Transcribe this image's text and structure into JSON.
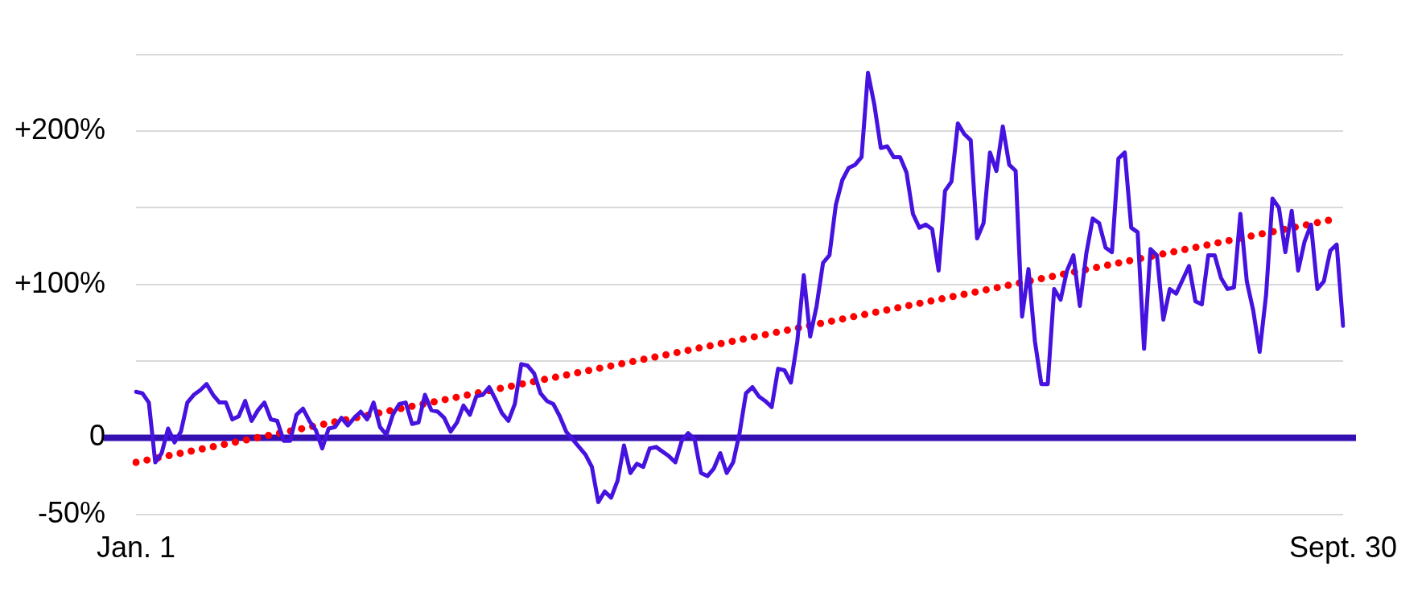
{
  "chart_data": {
    "type": "line",
    "categories": [
      "Jan. 1",
      null,
      null,
      null,
      null,
      null,
      null,
      null,
      null,
      null,
      null,
      null,
      null,
      null,
      null,
      null,
      null,
      null,
      null,
      null,
      null,
      null,
      null,
      null,
      null,
      null,
      null,
      null,
      null,
      null,
      null,
      null,
      null,
      null,
      null,
      null,
      null,
      null,
      null,
      null,
      null,
      null,
      null,
      null,
      null,
      null,
      null,
      null,
      null,
      null,
      null,
      null,
      null,
      null,
      null,
      null,
      null,
      null,
      null,
      null,
      null,
      null,
      null,
      null,
      null,
      null,
      null,
      null,
      null,
      null,
      null,
      null,
      null,
      null,
      null,
      null,
      null,
      null,
      null,
      null,
      null,
      null,
      null,
      null,
      null,
      null,
      null,
      null,
      null,
      null,
      null,
      null,
      null,
      null,
      null,
      null,
      null,
      null,
      null,
      null,
      null,
      null,
      null,
      null,
      null,
      null,
      null,
      null,
      null,
      null,
      null,
      null,
      null,
      null,
      null,
      null,
      null,
      null,
      null,
      null,
      null,
      null,
      null,
      null,
      null,
      null,
      null,
      null,
      null,
      null,
      null,
      null,
      null,
      null,
      null,
      null,
      null,
      null,
      null,
      null,
      null,
      null,
      null,
      null,
      null,
      null,
      null,
      null,
      null,
      null,
      null,
      null,
      null,
      null,
      null,
      null,
      null,
      null,
      null,
      null,
      null,
      null,
      null,
      null,
      null,
      null,
      null,
      null,
      null,
      null,
      null,
      null,
      null,
      null,
      null,
      null,
      null,
      null,
      null,
      null,
      null,
      null,
      null,
      null,
      null,
      null,
      null,
      null,
      "Sept. 30"
    ],
    "ylim": [
      -50,
      250
    ],
    "yticks": [
      {
        "value": -50,
        "label": "-50%"
      },
      {
        "value": 0,
        "label": "0"
      },
      {
        "value": 50,
        "label": null
      },
      {
        "value": 100,
        "label": "+100%"
      },
      {
        "value": 150,
        "label": null
      },
      {
        "value": 200,
        "label": "+200%"
      },
      {
        "value": 250,
        "label": null
      }
    ],
    "grid": "y",
    "marker": "none",
    "ref_lines": [
      {
        "axis": "y",
        "value": 0,
        "color": "#3510b0"
      }
    ],
    "series": [
      {
        "color": "#4512e0",
        "line_style": "solid",
        "values": [
          30,
          29,
          23,
          -16,
          -10,
          6,
          -3,
          4,
          23,
          28,
          31,
          35,
          28,
          23,
          23,
          12,
          14,
          24,
          11,
          18,
          23,
          12,
          11,
          -2,
          -2,
          15,
          19,
          11,
          5,
          -7,
          6,
          7,
          13,
          8,
          13,
          17,
          12,
          23,
          7,
          2,
          15,
          22,
          23,
          9,
          10,
          28,
          18,
          17,
          13,
          4,
          10,
          21,
          15,
          27,
          28,
          33,
          25,
          16,
          11,
          22,
          48,
          47,
          42,
          29,
          24,
          22,
          14,
          4,
          -1,
          -6,
          -11,
          -19,
          -42,
          -35,
          -39,
          -28,
          -5,
          -23,
          -17,
          -19,
          -7,
          -6,
          -9,
          -12,
          -16,
          -2,
          3,
          -1,
          -23,
          -25,
          -20,
          -10,
          -23,
          -16,
          3,
          29,
          33,
          27,
          24,
          20,
          45,
          44,
          36,
          63,
          106,
          66,
          86,
          114,
          119,
          152,
          168,
          176,
          178,
          183,
          238,
          217,
          189,
          190,
          183,
          183,
          173,
          146,
          137,
          139,
          136,
          109,
          161,
          167,
          205,
          198,
          194,
          130,
          140,
          186,
          174,
          203,
          178,
          174,
          79,
          110,
          63,
          35,
          35,
          97,
          90,
          109,
          119,
          86,
          120,
          143,
          140,
          124,
          121,
          182,
          186,
          137,
          134,
          58,
          123,
          119,
          77,
          97,
          94,
          103,
          112,
          89,
          87,
          119,
          119,
          104,
          97,
          98,
          146,
          102,
          83,
          56,
          93,
          156,
          150,
          121,
          148,
          109,
          128,
          139,
          97,
          102,
          122,
          126,
          73
        ]
      },
      {
        "color": "#ff0000",
        "line_style": "dotted",
        "values": [
          -16,
          null,
          null,
          null,
          null,
          null,
          null,
          null,
          null,
          null,
          null,
          null,
          null,
          null,
          null,
          null,
          null,
          null,
          null,
          null,
          null,
          null,
          null,
          null,
          null,
          null,
          null,
          null,
          null,
          null,
          null,
          null,
          null,
          null,
          null,
          null,
          null,
          null,
          null,
          null,
          null,
          null,
          null,
          null,
          null,
          null,
          null,
          null,
          null,
          null,
          null,
          null,
          null,
          null,
          null,
          null,
          null,
          null,
          null,
          null,
          null,
          null,
          null,
          null,
          null,
          null,
          null,
          null,
          null,
          null,
          null,
          null,
          null,
          null,
          null,
          null,
          null,
          null,
          null,
          null,
          null,
          null,
          null,
          null,
          null,
          null,
          null,
          null,
          null,
          null,
          null,
          null,
          null,
          null,
          null,
          null,
          null,
          null,
          null,
          null,
          null,
          null,
          null,
          null,
          null,
          null,
          null,
          null,
          null,
          null,
          null,
          null,
          null,
          null,
          null,
          null,
          null,
          null,
          null,
          null,
          null,
          null,
          null,
          null,
          null,
          null,
          null,
          null,
          null,
          null,
          null,
          null,
          null,
          null,
          null,
          null,
          null,
          null,
          null,
          null,
          null,
          null,
          null,
          null,
          null,
          null,
          null,
          null,
          null,
          null,
          null,
          null,
          null,
          null,
          null,
          null,
          null,
          null,
          null,
          null,
          null,
          null,
          null,
          null,
          null,
          null,
          null,
          null,
          null,
          null,
          null,
          null,
          null,
          null,
          null,
          null,
          null,
          null,
          null,
          null,
          null,
          null,
          null,
          null,
          null,
          null,
          142,
          null,
          null
        ]
      }
    ]
  }
}
